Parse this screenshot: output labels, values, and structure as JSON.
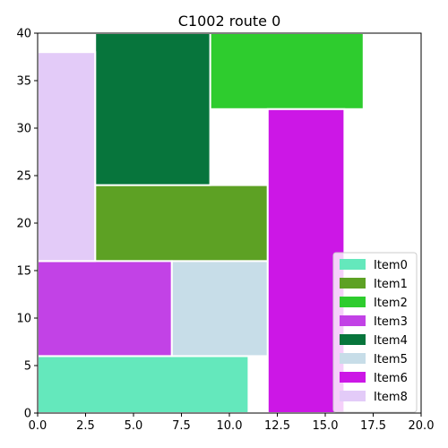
{
  "chart_data": {
    "type": "bar",
    "title": "C1002 route 0",
    "xlabel": "",
    "ylabel": "",
    "xlim": [
      0,
      20
    ],
    "ylim": [
      0,
      40
    ],
    "x_ticks": [
      "0.0",
      "2.5",
      "5.0",
      "7.5",
      "10.0",
      "12.5",
      "15.0",
      "17.5",
      "20.0"
    ],
    "y_ticks": [
      "0",
      "5",
      "10",
      "15",
      "20",
      "25",
      "30",
      "35",
      "40"
    ],
    "grid": false,
    "legend_position": "lower-right",
    "series": [
      {
        "name": "Item0",
        "color": "#64e8bc",
        "x0": 0,
        "x1": 11,
        "y0": 0,
        "y1": 6
      },
      {
        "name": "Item1",
        "color": "#5da124",
        "x0": 3,
        "x1": 12,
        "y0": 16,
        "y1": 24
      },
      {
        "name": "Item2",
        "color": "#2ecc2e",
        "x0": 9,
        "x1": 17,
        "y0": 32,
        "y1": 40
      },
      {
        "name": "Item3",
        "color": "#c242e6",
        "x0": 0,
        "x1": 7,
        "y0": 6,
        "y1": 16
      },
      {
        "name": "Item4",
        "color": "#07753c",
        "x0": 3,
        "x1": 9,
        "y0": 24,
        "y1": 40
      },
      {
        "name": "Item5",
        "color": "#c7dde8",
        "x0": 7,
        "x1": 12,
        "y0": 6,
        "y1": 16
      },
      {
        "name": "Item6",
        "color": "#cc17e6",
        "x0": 12,
        "x1": 16,
        "y0": 0,
        "y1": 32
      },
      {
        "name": "Item8",
        "color": "#e3cbf8",
        "x0": 0,
        "x1": 3,
        "y0": 16,
        "y1": 38
      }
    ]
  }
}
